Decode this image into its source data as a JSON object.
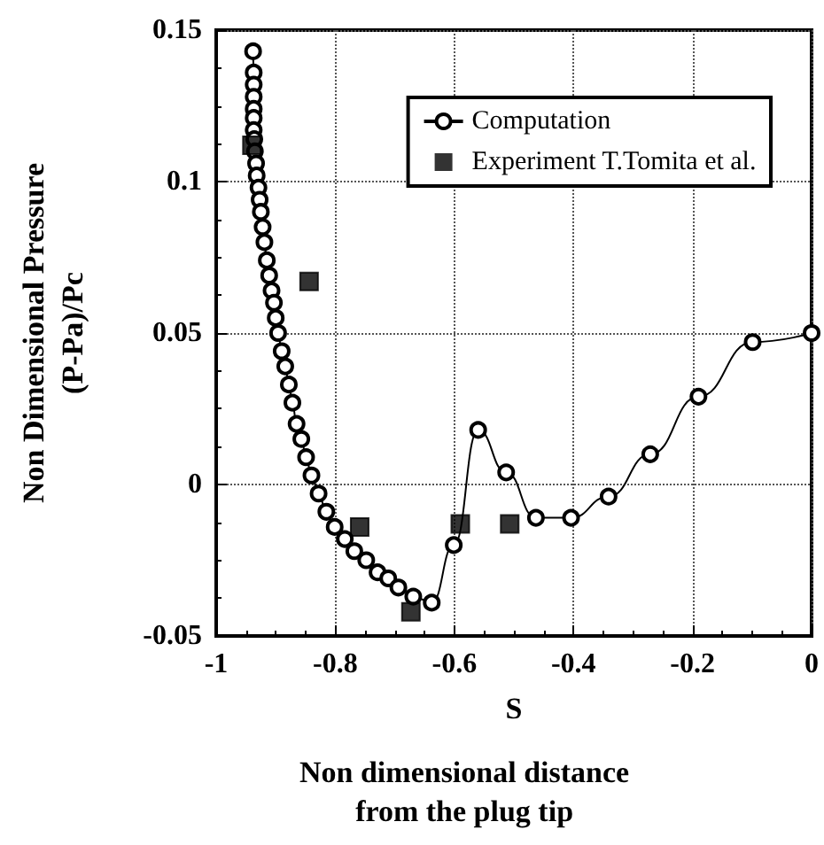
{
  "chart_data": {
    "type": "line",
    "xlabel": "S",
    "ylabel": "Non Dimensional Pressure\n(P-Pa)/Pc",
    "annotations": [
      "Non dimensional distance\nfrom the plug tip"
    ],
    "xlim": [
      -1,
      0
    ],
    "xticks": [
      -1,
      -0.8,
      -0.6,
      -0.4,
      -0.2,
      0
    ],
    "ylim": [
      -0.05,
      0.15
    ],
    "yticks": [
      -0.05,
      0,
      0.05,
      0.1,
      0.15
    ],
    "grid": true,
    "legend": "top right",
    "series": [
      {
        "name": "Computation",
        "marker": "circle",
        "line_style": "solid",
        "color": "#000000",
        "x": [
          -0.938,
          -0.937,
          -0.937,
          -0.937,
          -0.937,
          -0.937,
          -0.937,
          -0.936,
          -0.935,
          -0.933,
          -0.932,
          -0.929,
          -0.927,
          -0.925,
          -0.922,
          -0.919,
          -0.915,
          -0.911,
          -0.907,
          -0.903,
          -0.9,
          -0.896,
          -0.89,
          -0.884,
          -0.878,
          -0.872,
          -0.865,
          -0.857,
          -0.849,
          -0.84,
          -0.828,
          -0.815,
          -0.801,
          -0.784,
          -0.768,
          -0.748,
          -0.729,
          -0.711,
          -0.694,
          -0.669,
          -0.638,
          -0.601,
          -0.56,
          -0.513,
          -0.463,
          -0.404,
          -0.341,
          -0.271,
          -0.19,
          -0.099,
          0
        ],
        "values": [
          0.143,
          0.136,
          0.132,
          0.128,
          0.124,
          0.121,
          0.117,
          0.114,
          0.11,
          0.106,
          0.102,
          0.098,
          0.094,
          0.09,
          0.085,
          0.08,
          0.074,
          0.069,
          0.064,
          0.06,
          0.055,
          0.05,
          0.044,
          0.039,
          0.033,
          0.027,
          0.02,
          0.015,
          0.009,
          0.003,
          -0.003,
          -0.009,
          -0.014,
          -0.018,
          -0.022,
          -0.025,
          -0.029,
          -0.031,
          -0.034,
          -0.037,
          -0.039,
          -0.02,
          0.018,
          0.004,
          -0.011,
          -0.011,
          -0.004,
          0.01,
          0.029,
          0.047,
          0.05
        ]
      },
      {
        "name": "Experiment T.Tomita et al.",
        "type": "scatter",
        "marker": "square",
        "color": "#000000",
        "x": [
          -0.94,
          -0.844,
          -0.759,
          -0.673,
          -0.59,
          -0.507
        ],
        "values": [
          0.112,
          0.067,
          -0.014,
          -0.042,
          -0.013,
          -0.013
        ]
      }
    ]
  }
}
